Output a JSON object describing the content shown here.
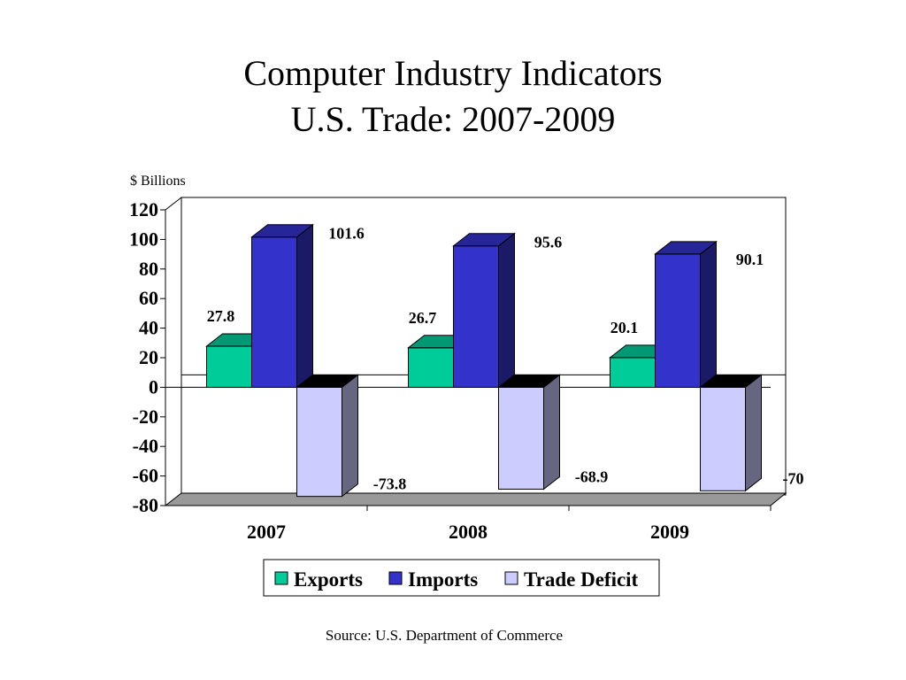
{
  "chart_data": {
    "type": "bar",
    "title": "Computer Industry Indicators",
    "subtitle": "U.S. Trade: 2007-2009",
    "ylabel": "$ Billions",
    "xlabel": "",
    "ylim": [
      -80,
      120
    ],
    "yticks": [
      "120",
      "100",
      "80",
      "60",
      "40",
      "20",
      "0",
      "-20",
      "-40",
      "-60",
      "-80"
    ],
    "categories": [
      "2007",
      "2008",
      "2009"
    ],
    "series": [
      {
        "name": "Exports",
        "values": [
          27.8,
          26.7,
          20.1
        ],
        "labels": [
          "27.8",
          "26.7",
          "20.1"
        ],
        "color": "#00CC99"
      },
      {
        "name": "Imports",
        "values": [
          101.6,
          95.6,
          90.1
        ],
        "labels": [
          "101.6",
          "95.6",
          "90.1"
        ],
        "color": "#3333CC"
      },
      {
        "name": "Trade Deficit",
        "values": [
          -73.8,
          -68.9,
          -70
        ],
        "labels": [
          "-73.8",
          "-68.9",
          "-70"
        ],
        "color": "#CCCCFF"
      }
    ],
    "legend_position": "bottom",
    "grid": false,
    "three_d": true
  },
  "source": "Source:  U.S. Department of Commerce"
}
